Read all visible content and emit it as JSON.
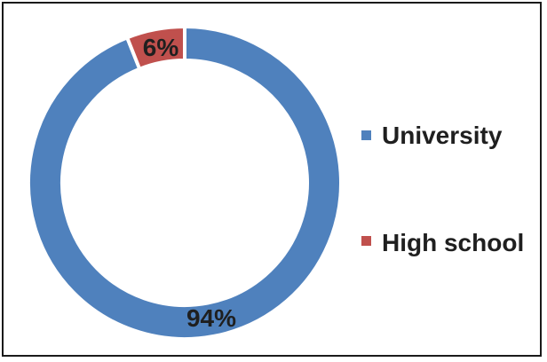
{
  "chart_data": {
    "type": "pie",
    "donut": true,
    "categories": [
      "University",
      "High school"
    ],
    "values": [
      94,
      6
    ],
    "data_labels": [
      "94%",
      "6%"
    ],
    "colors": [
      "#4f81bd",
      "#c0504d"
    ],
    "title": "",
    "legend_position": "right"
  }
}
